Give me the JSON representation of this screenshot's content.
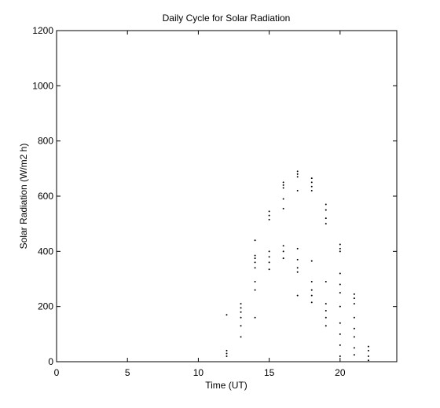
{
  "chart_data": {
    "type": "scatter",
    "title": "Daily Cycle for Solar Radiation",
    "x_label": "Time (UT)",
    "y_label": "Solar Radiation (W/m2 h)",
    "xlim": [
      0,
      24
    ],
    "xticks": [
      0,
      5,
      10,
      15,
      20
    ],
    "ylim": [
      0,
      1200
    ],
    "yticks": [
      0,
      200,
      400,
      600,
      800,
      1000,
      1200
    ],
    "grid": false,
    "series": [
      {
        "color": "#000000",
        "x": [
          12,
          12,
          12,
          12,
          13,
          13,
          13,
          13,
          13,
          13,
          14,
          14,
          14,
          14,
          14,
          14,
          14,
          14,
          15,
          15,
          15,
          15,
          15,
          15,
          15,
          16,
          16,
          16,
          16,
          16,
          16,
          16,
          16,
          17,
          17,
          17,
          17,
          17,
          17,
          17,
          17,
          17,
          18,
          18,
          18,
          18,
          18,
          18,
          18,
          18,
          18,
          19,
          19,
          19,
          19,
          19,
          19,
          19,
          19,
          19,
          20,
          20,
          20,
          20,
          20,
          20,
          20,
          20,
          20,
          20,
          20,
          21,
          21,
          21,
          21,
          21,
          21,
          21,
          21,
          22,
          22,
          22,
          22
        ],
        "values": [
          170,
          40,
          30,
          20,
          210,
          195,
          180,
          160,
          130,
          90,
          440,
          385,
          375,
          360,
          340,
          290,
          260,
          160,
          545,
          530,
          515,
          400,
          380,
          360,
          335,
          650,
          640,
          630,
          590,
          555,
          420,
          400,
          375,
          690,
          680,
          670,
          620,
          410,
          370,
          340,
          325,
          240,
          665,
          650,
          635,
          620,
          365,
          290,
          260,
          240,
          215,
          570,
          550,
          520,
          500,
          290,
          210,
          185,
          160,
          130,
          425,
          410,
          400,
          320,
          280,
          250,
          200,
          140,
          100,
          60,
          20,
          245,
          230,
          210,
          160,
          120,
          90,
          50,
          25,
          55,
          40,
          20,
          5
        ]
      }
    ]
  }
}
